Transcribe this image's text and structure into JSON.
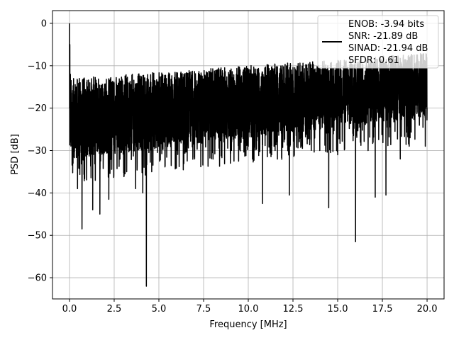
{
  "chart_data": {
    "type": "line",
    "title": "",
    "xlabel": "Frequency [MHz]",
    "ylabel": "PSD [dB]",
    "xlim": [
      -0.95,
      20.95
    ],
    "ylim": [
      -65,
      3
    ],
    "xticks": [
      0.0,
      2.5,
      5.0,
      7.5,
      10.0,
      12.5,
      15.0,
      17.5,
      20.0
    ],
    "xtick_labels": [
      "0.0",
      "2.5",
      "5.0",
      "7.5",
      "10.0",
      "12.5",
      "15.0",
      "17.5",
      "20.0"
    ],
    "yticks": [
      0,
      -10,
      -20,
      -30,
      -40,
      -50,
      -60
    ],
    "ytick_labels": [
      "0",
      "−10",
      "−20",
      "−30",
      "−40",
      "−50",
      "−60"
    ],
    "grid": true,
    "legend_position": "top-right",
    "series": [
      {
        "name": "",
        "color": "#000000",
        "description_points": {
          "x": [
            0.0,
            0.02,
            0.05,
            0.1,
            0.2,
            0.3,
            0.45,
            0.6,
            0.7,
            0.8,
            1.0,
            1.3,
            1.7,
            2.1,
            2.2,
            3.2,
            3.7,
            4.1,
            4.3,
            4.6,
            5.0,
            6.0,
            7.0,
            8.0,
            9.0,
            10.0,
            10.8,
            11.5,
            12.0,
            12.3,
            13.0,
            14.0,
            14.5,
            15.0,
            16.0,
            16.7,
            17.1,
            17.7,
            18.5,
            19.0,
            19.9,
            20.0
          ],
          "y": [
            0.0,
            -5.0,
            -12.0,
            -18.0,
            -33.0,
            -16.0,
            -39.0,
            -14.0,
            -48.5,
            -18.0,
            -31.0,
            -44.0,
            -45.0,
            -25.0,
            -41.5,
            -35.0,
            -39.0,
            -40.0,
            -62.0,
            -35.0,
            -29.0,
            -30.0,
            -32.0,
            -30.5,
            -33.0,
            -29.0,
            -42.5,
            -30.0,
            -28.0,
            -40.5,
            -29.0,
            -30.0,
            -43.5,
            -31.0,
            -51.5,
            -30.0,
            -41.0,
            -40.5,
            -32.0,
            -29.0,
            -29.0,
            -20.0
          ]
        },
        "noise_band": {
          "upper": [
            -13,
            -7
          ],
          "lower": [
            -32,
            -22
          ],
          "median": -19
        }
      }
    ],
    "legend_entries": [
      "ENOB: -3.94 bits",
      "SNR: -21.89 dB",
      "SINAD: -21.94 dB",
      "SFDR: 0.61"
    ]
  }
}
